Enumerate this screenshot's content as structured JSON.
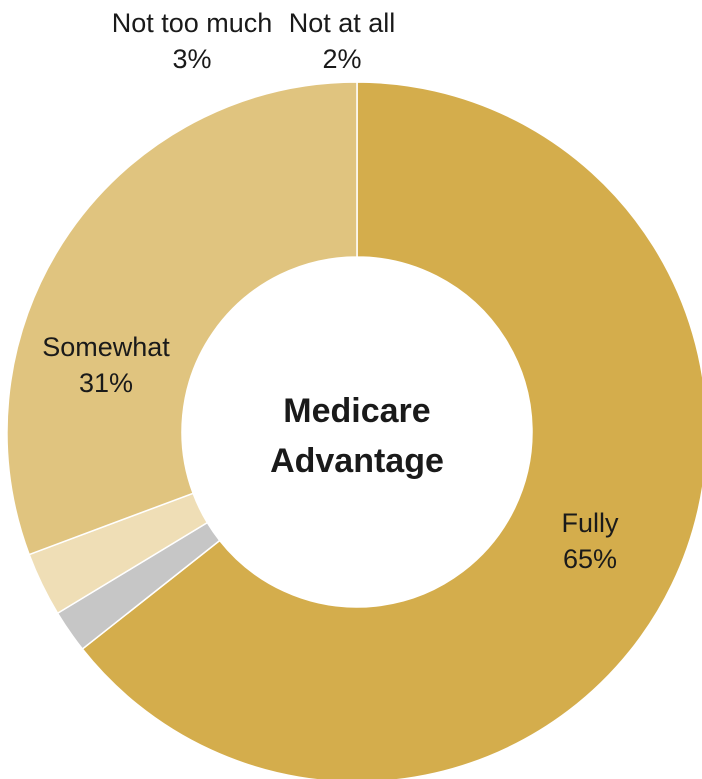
{
  "chart_data": {
    "type": "pie",
    "variant": "donut",
    "center_label": [
      "Medicare",
      "Advantage"
    ],
    "slices": [
      {
        "label": "Fully",
        "value": 65,
        "value_label": "65%",
        "color": "#d4ad4c"
      },
      {
        "label": "Not at all",
        "value": 2,
        "value_label": "2%",
        "color": "#c6c6c6"
      },
      {
        "label": "Not too much",
        "value": 3,
        "value_label": "3%",
        "color": "#efdeb6"
      },
      {
        "label": "Somewhat",
        "value": 31,
        "value_label": "31%",
        "color": "#e0c47f"
      }
    ],
    "start_angle": "12 o'clock",
    "direction": "clockwise (Fully first)"
  }
}
